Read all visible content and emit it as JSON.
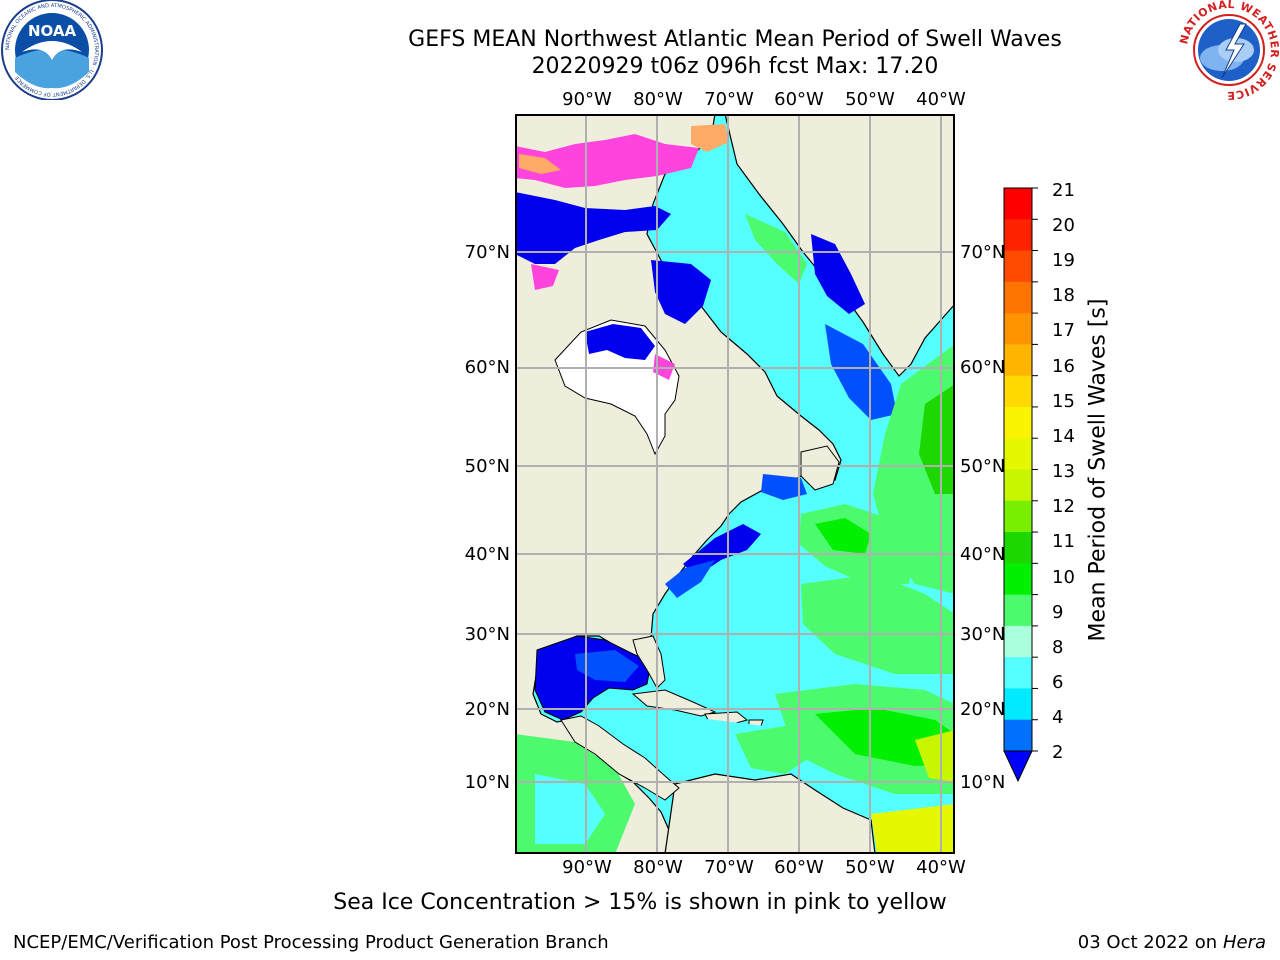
{
  "title_line1": "GEFS MEAN Northwest Atlantic Mean Period of Swell Waves",
  "title_line2": "20220929 t06z 096h fcst   Max: 17.20",
  "lon_labels": [
    "90°W",
    "80°W",
    "70°W",
    "60°W",
    "50°W",
    "40°W"
  ],
  "lat_labels": [
    "70°N",
    "60°N",
    "50°N",
    "40°N",
    "30°N",
    "20°N",
    "10°N"
  ],
  "colorbar": {
    "title": "Mean Period of Swell Waves [s]",
    "ticks": [
      "21",
      "20",
      "19",
      "18",
      "17",
      "16",
      "15",
      "14",
      "13",
      "12",
      "11",
      "10",
      "9",
      "8",
      "6",
      "4",
      "2"
    ],
    "colors": [
      "#ff0000",
      "#ff2200",
      "#ff4b00",
      "#ff7300",
      "#ff9300",
      "#ffb400",
      "#ffd900",
      "#fbf300",
      "#e5f800",
      "#c8f500",
      "#78ee00",
      "#1ed700",
      "#00f000",
      "#4dfa6d",
      "#aaffdd",
      "#55ffff",
      "#00ebff",
      "#0070ff"
    ],
    "extend_min_color": "#0000ff"
  },
  "legend_note": "Sea Ice Concentration > 15% is shown in pink to yellow",
  "footer_left": "NCEP/EMC/Verification Post Processing Product Generation Branch",
  "footer_date": "03 Oct 2022 on",
  "footer_machine": "Hera",
  "logos": {
    "left": {
      "icon": "noaa-logo",
      "text": "NOAA",
      "ring_text": "NATIONAL OCEANIC AND ATMOSPHERIC ADMINISTRATION · U.S. DEPARTMENT OF COMMERCE"
    },
    "right": {
      "icon": "nws-logo",
      "ring_text": "NATIONAL WEATHER SERVICE"
    }
  },
  "map_colors": {
    "land": "#efeedc",
    "grid": "#b0b0b0",
    "ice": "#ff44dd",
    "ice_edge": "#ffaa66"
  }
}
